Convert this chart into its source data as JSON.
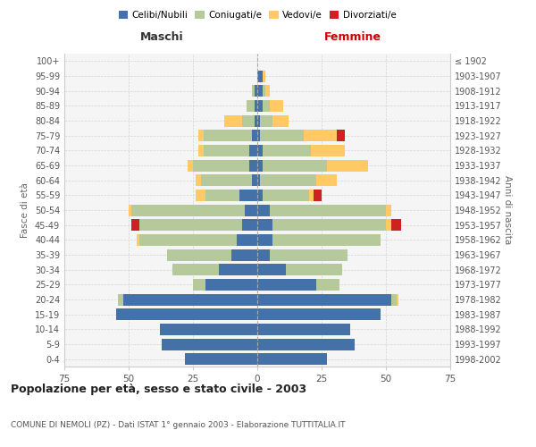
{
  "age_groups": [
    "0-4",
    "5-9",
    "10-14",
    "15-19",
    "20-24",
    "25-29",
    "30-34",
    "35-39",
    "40-44",
    "45-49",
    "50-54",
    "55-59",
    "60-64",
    "65-69",
    "70-74",
    "75-79",
    "80-84",
    "85-89",
    "90-94",
    "95-99",
    "100+"
  ],
  "birth_years": [
    "1998-2002",
    "1993-1997",
    "1988-1992",
    "1983-1987",
    "1978-1982",
    "1973-1977",
    "1968-1972",
    "1963-1967",
    "1958-1962",
    "1953-1957",
    "1948-1952",
    "1943-1947",
    "1938-1942",
    "1933-1937",
    "1928-1932",
    "1923-1927",
    "1918-1922",
    "1913-1917",
    "1908-1912",
    "1903-1907",
    "≤ 1902"
  ],
  "maschi": {
    "celibi": [
      28,
      37,
      38,
      55,
      52,
      20,
      15,
      10,
      8,
      6,
      5,
      7,
      2,
      3,
      3,
      2,
      1,
      1,
      1,
      0,
      0
    ],
    "coniugati": [
      0,
      0,
      0,
      0,
      2,
      5,
      18,
      25,
      38,
      40,
      44,
      13,
      20,
      22,
      18,
      19,
      5,
      3,
      1,
      0,
      0
    ],
    "vedovi": [
      0,
      0,
      0,
      0,
      0,
      0,
      0,
      0,
      1,
      0,
      1,
      4,
      2,
      2,
      2,
      2,
      7,
      0,
      0,
      0,
      0
    ],
    "divorziati": [
      0,
      0,
      0,
      0,
      0,
      0,
      0,
      0,
      0,
      3,
      0,
      0,
      0,
      0,
      0,
      0,
      0,
      0,
      0,
      0,
      0
    ]
  },
  "femmine": {
    "nubili": [
      27,
      38,
      36,
      48,
      52,
      23,
      11,
      5,
      6,
      6,
      5,
      2,
      1,
      2,
      2,
      1,
      1,
      2,
      2,
      2,
      0
    ],
    "coniugate": [
      0,
      0,
      0,
      0,
      2,
      9,
      22,
      30,
      42,
      44,
      45,
      18,
      22,
      25,
      19,
      17,
      5,
      3,
      1,
      0,
      0
    ],
    "vedove": [
      0,
      0,
      0,
      0,
      1,
      0,
      0,
      0,
      0,
      2,
      2,
      2,
      8,
      16,
      13,
      13,
      6,
      5,
      2,
      1,
      0
    ],
    "divorziate": [
      0,
      0,
      0,
      0,
      0,
      0,
      0,
      0,
      0,
      4,
      0,
      3,
      0,
      0,
      0,
      3,
      0,
      0,
      0,
      0,
      0
    ]
  },
  "colors": {
    "celibi": "#4472a8",
    "coniugati": "#b5c99a",
    "vedovi": "#ffc966",
    "divorziati": "#cc2222"
  },
  "xlim": 75,
  "title": "Popolazione per età, sesso e stato civile - 2003",
  "subtitle": "COMUNE DI NEMOLI (PZ) - Dati ISTAT 1° gennaio 2003 - Elaborazione TUTTITALIA.IT",
  "ylabel_left": "Fasce di età",
  "ylabel_right": "Anni di nascita",
  "xlabel_maschi": "Maschi",
  "xlabel_femmine": "Femmine",
  "bg_color": "#f5f5f5",
  "grid_color": "#cccccc"
}
